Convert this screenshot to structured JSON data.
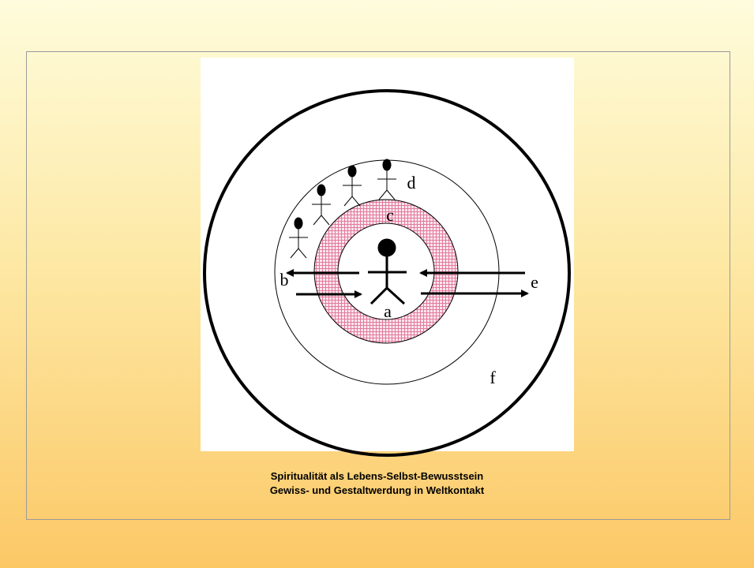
{
  "diagram": {
    "labels": {
      "a": "a",
      "b": "b",
      "c": "c",
      "d": "d",
      "e": "e",
      "f": "f"
    }
  },
  "caption": {
    "line1": "Spiritualität als Lebens-Selbst-Bewusstsein",
    "line2": "Gewiss- und Gestaltwerdung in Weltkontakt"
  }
}
